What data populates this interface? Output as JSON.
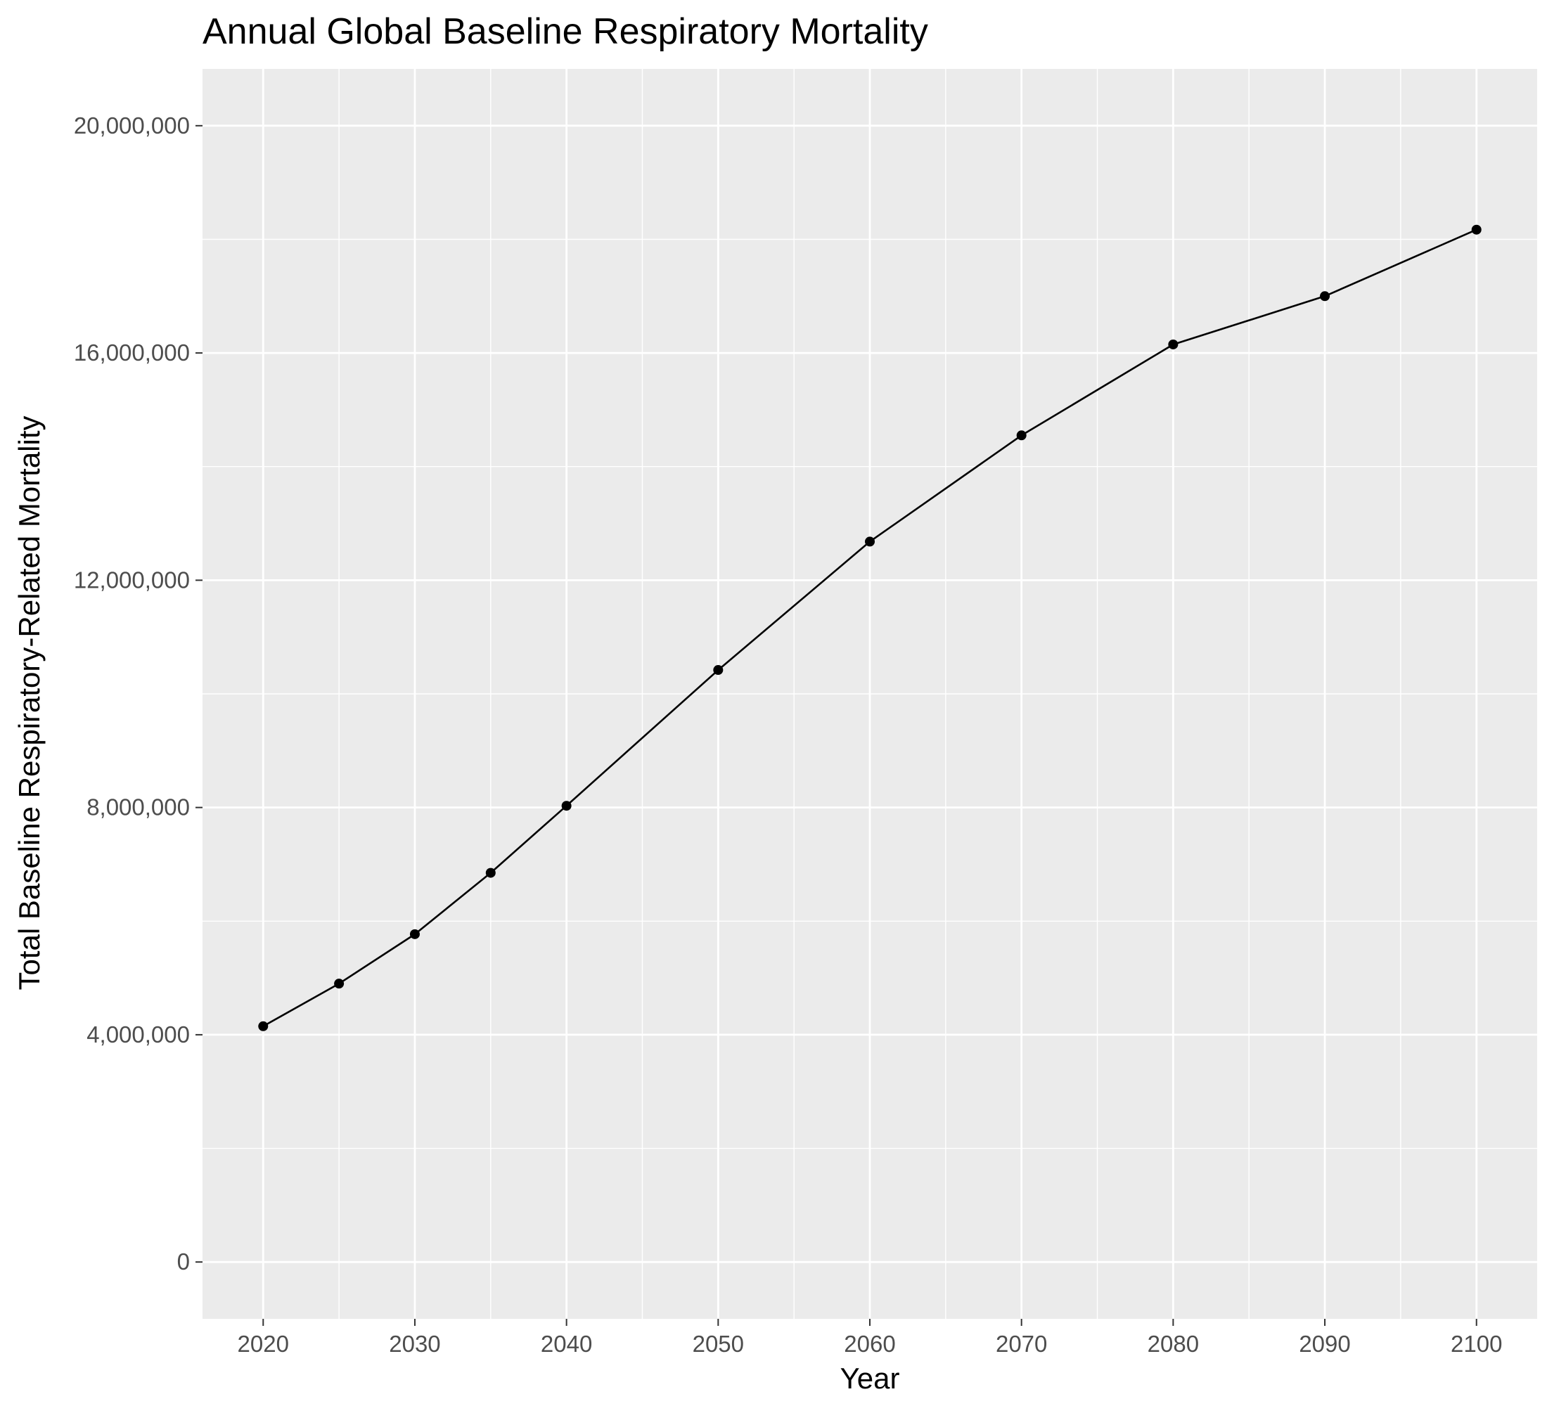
{
  "chart_data": {
    "type": "line",
    "title": "Annual Global Baseline Respiratory Mortality",
    "xlabel": "Year",
    "ylabel": "Total Baseline Respiratory-Related Mortality",
    "xlim": [
      2016,
      2104
    ],
    "ylim": [
      -1000000,
      21000000
    ],
    "x_ticks": [
      2020,
      2030,
      2040,
      2050,
      2060,
      2070,
      2080,
      2090,
      2100
    ],
    "x_tick_labels": [
      "2020",
      "2030",
      "2040",
      "2050",
      "2060",
      "2070",
      "2080",
      "2090",
      "2100"
    ],
    "x_minor_ticks": [
      2025,
      2035,
      2045,
      2055,
      2065,
      2075,
      2085,
      2095
    ],
    "y_ticks": [
      0,
      4000000,
      8000000,
      12000000,
      16000000,
      20000000
    ],
    "y_tick_labels": [
      "0",
      "4,000,000",
      "8,000,000",
      "12,000,000",
      "16,000,000",
      "20,000,000"
    ],
    "y_minor_ticks": [
      2000000,
      6000000,
      10000000,
      14000000,
      18000000
    ],
    "grid": true,
    "legend": "none",
    "colors": {
      "panel_background": "#ebebeb",
      "grid_line": "#ffffff",
      "series_line": "#000000",
      "tick_label": "#4d4d4d"
    },
    "series": [
      {
        "x": [
          2020,
          2025,
          2030,
          2035,
          2040,
          2050,
          2060,
          2070,
          2080,
          2090,
          2100
        ],
        "y": [
          4150000,
          4900000,
          5770000,
          6850000,
          8030000,
          10420000,
          12680000,
          14550000,
          16150000,
          17000000,
          18170000
        ]
      }
    ]
  }
}
